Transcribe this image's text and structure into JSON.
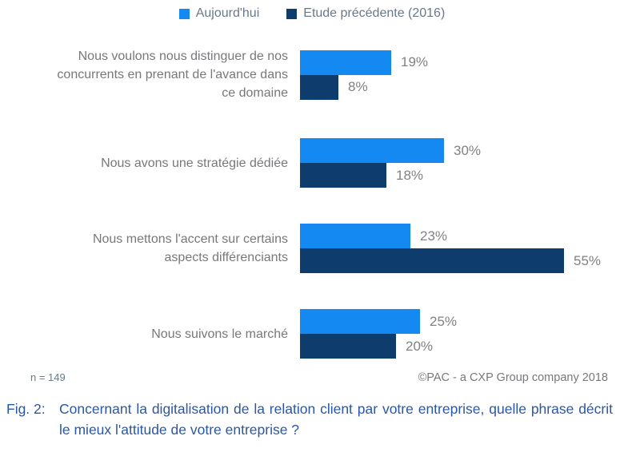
{
  "legend": {
    "items": [
      {
        "label": "Aujourd'hui",
        "color": "#1589f2"
      },
      {
        "label": "Etude précédente (2016)",
        "color": "#0e3d6d"
      }
    ]
  },
  "chart_data": {
    "type": "bar",
    "orientation": "horizontal",
    "title": "",
    "xlabel": "",
    "ylabel": "",
    "xlim": [
      0,
      60
    ],
    "grid": false,
    "legend_position": "top",
    "data_labels": true,
    "value_suffix": "%",
    "categories": [
      "Nous voulons nous distinguer de nos concurrents en prenant de l'avance dans ce domaine",
      "Nous avons une stratégie dédiée",
      "Nous mettons l'accent sur certains aspects différenciants",
      "Nous suivons le marché"
    ],
    "series": [
      {
        "name": "Aujourd'hui",
        "color": "#1589f2",
        "values": [
          19,
          30,
          23,
          25
        ]
      },
      {
        "name": "Etude précédente (2016)",
        "color": "#0e3d6d",
        "values": [
          8,
          18,
          55,
          20
        ]
      }
    ]
  },
  "footer": {
    "sample_size": "n = 149",
    "source": "©PAC - a CXP Group company 2018"
  },
  "caption": {
    "fig_label": "Fig. 2:",
    "text": "Concernant la digitalisation de la relation client par votre entreprise, quelle phrase décrit le mieux l'attitude de votre entreprise ?"
  }
}
